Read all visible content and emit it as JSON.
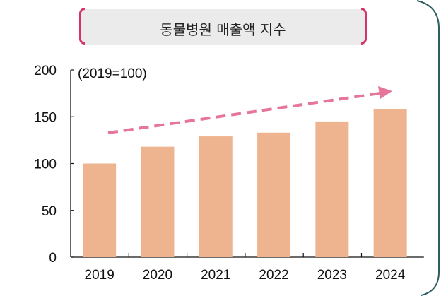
{
  "chart_data": {
    "type": "bar",
    "title": "동물병원 매출액 지수",
    "annotation": "(2019=100)",
    "categories": [
      "2019",
      "2020",
      "2021",
      "2022",
      "2023",
      "2024"
    ],
    "values": [
      100,
      118,
      129,
      133,
      145,
      158
    ],
    "ylim": [
      0,
      200
    ],
    "yticks": [
      0,
      50,
      100,
      150,
      200
    ],
    "grid": false,
    "trend_arrow": true,
    "colors": {
      "bar": "#eeb490",
      "arrow": "#e5769a",
      "title_bracket": "#d6336c",
      "title_bg": "#ebebeb"
    }
  }
}
